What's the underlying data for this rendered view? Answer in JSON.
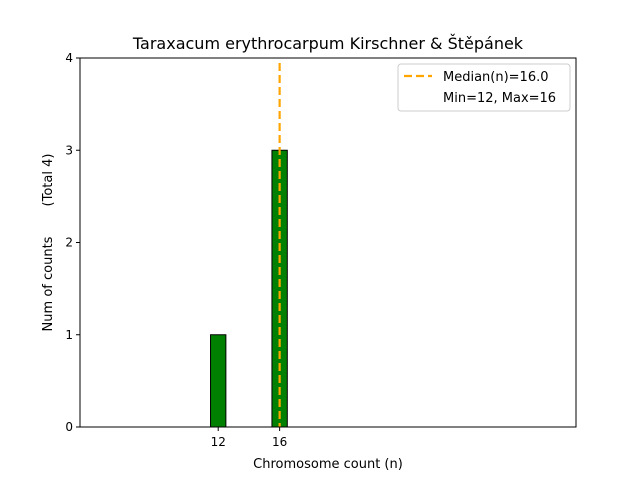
{
  "chart_data": {
    "type": "bar",
    "title": "Taraxacum erythrocarpum Kirschner & Štěpánek",
    "xlabel": "Chromosome count (n)",
    "ylabel": "Num of counts",
    "ylabel_note": "(Total 4)",
    "xlim": [
      3,
      35.3
    ],
    "ylim": [
      0,
      4
    ],
    "bar_width": 1,
    "bars": [
      {
        "x": 12,
        "count": 1
      },
      {
        "x": 16,
        "count": 3
      }
    ],
    "baseline_extent": [
      3,
      23
    ],
    "x_ticks": [
      12,
      16
    ],
    "y_ticks": [
      0,
      1,
      2,
      3,
      4
    ],
    "median_line": {
      "x": 16.0,
      "label": "Median(n)=16.0"
    },
    "legend": {
      "position": "top-right",
      "entries": [
        "Median(n)=16.0",
        "Min=12, Max=16"
      ]
    },
    "colors": {
      "bar_fill": "#008000",
      "bar_edge": "#000000",
      "median": "#FFA500",
      "axes": "#000000"
    }
  }
}
